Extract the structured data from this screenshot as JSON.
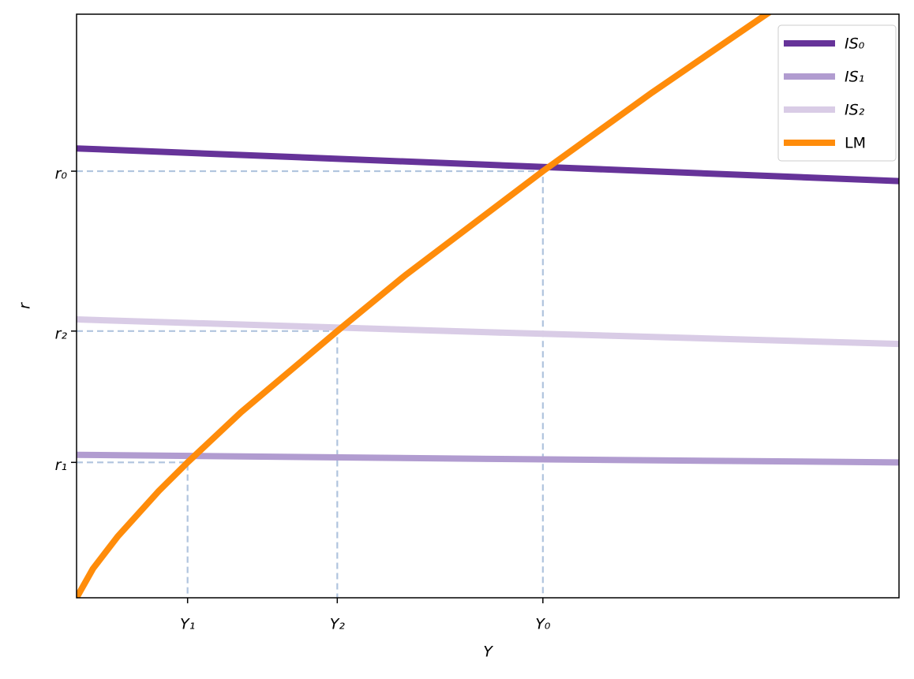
{
  "chart_data": {
    "type": "line",
    "xlabel": "Y",
    "ylabel": "r",
    "xlim": [
      0,
      100
    ],
    "ylim": [
      0,
      100
    ],
    "xticks": [
      {
        "value": 13.5,
        "label": "Y₁"
      },
      {
        "value": 31.7,
        "label": "Y₂"
      },
      {
        "value": 56.7,
        "label": "Y₀"
      }
    ],
    "yticks": [
      {
        "value": 23.2,
        "label": "r₁"
      },
      {
        "value": 45.7,
        "label": "r₂"
      },
      {
        "value": 73.1,
        "label": "r₀"
      }
    ],
    "guides": true,
    "legend": "upper right",
    "series": [
      {
        "name": "IS₀",
        "color": "#663399",
        "x": [
          0,
          50,
          100
        ],
        "values": [
          77.0,
          74.2,
          71.4
        ]
      },
      {
        "name": "IS₁",
        "color": "#b19cd0",
        "x": [
          0,
          50,
          100
        ],
        "values": [
          24.5,
          23.8,
          23.2
        ]
      },
      {
        "name": "IS₂",
        "color": "#d9cce6",
        "x": [
          0,
          50,
          100
        ],
        "values": [
          47.7,
          45.5,
          43.5
        ]
      },
      {
        "name": "LM",
        "color": "#ff8c0a",
        "x": [
          0,
          2,
          5,
          10,
          13.5,
          20,
          31.7,
          40,
          56.7,
          70,
          84.3
        ],
        "values": [
          0,
          5.0,
          10.5,
          18.3,
          23.2,
          31.8,
          45.7,
          55.3,
          73.1,
          86.6,
          100.4
        ]
      }
    ]
  }
}
